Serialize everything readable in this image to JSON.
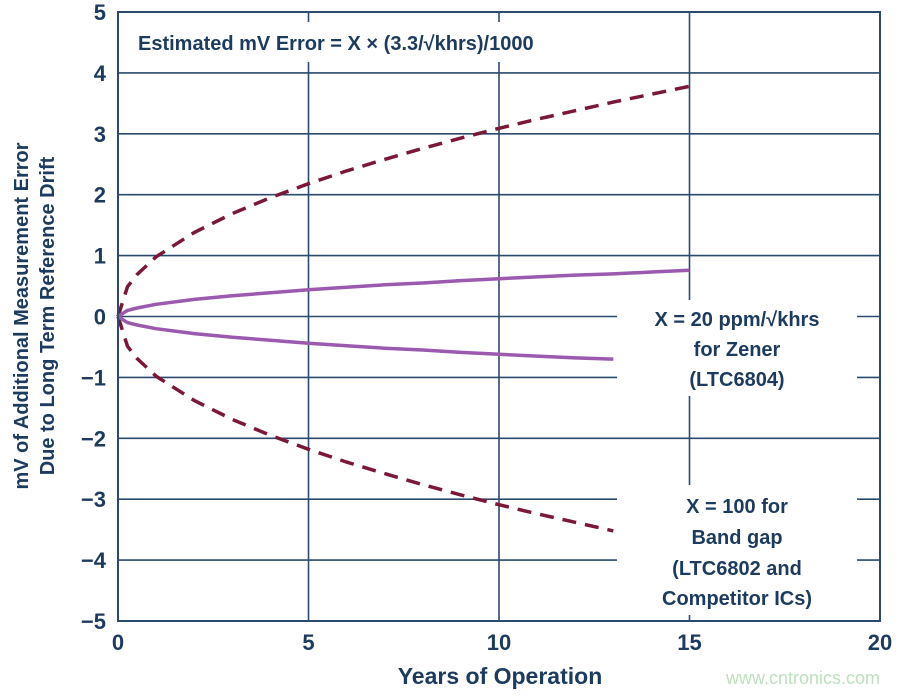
{
  "chart_data": {
    "type": "line",
    "title": "Estimated mV Error = X × (3.3/√khrs)/1000",
    "xlabel": "Years of Operation",
    "ylabel": [
      "mV of Additional Measurement Error",
      "Due to Long Term Reference Drift"
    ],
    "xlim": [
      0,
      20
    ],
    "ylim": [
      -5,
      5
    ],
    "xticks": [
      "0",
      "5",
      "10",
      "15",
      "20"
    ],
    "yticks": [
      "5",
      "4",
      "3",
      "2",
      "1",
      "0",
      "−1",
      "−2",
      "−3",
      "−4",
      "−5"
    ],
    "grid": true,
    "annotations": {
      "zener": [
        "X = 20 ppm/√khrs",
        "for Zener",
        "(LTC6804)"
      ],
      "bandgap": [
        "X = 100 for",
        "Band gap",
        "(LTC6802 and",
        "Competitor ICs)"
      ]
    },
    "series": [
      {
        "style": "dashed",
        "color": "#7a1838",
        "x": [
          0,
          0.25,
          0.5,
          1,
          2,
          3,
          4,
          5,
          6,
          7,
          8,
          9,
          10,
          11,
          12,
          13,
          14,
          15
        ],
        "y": [
          0,
          0.49,
          0.69,
          0.98,
          1.38,
          1.69,
          1.95,
          2.18,
          2.39,
          2.58,
          2.76,
          2.93,
          3.09,
          3.24,
          3.38,
          3.52,
          3.65,
          3.78
        ]
      },
      {
        "style": "dashed",
        "color": "#7a1838",
        "x": [
          0,
          0.25,
          0.5,
          1,
          2,
          3,
          4,
          5,
          6,
          7,
          8,
          9,
          10,
          11,
          12,
          13
        ],
        "y": [
          0,
          -0.49,
          -0.69,
          -0.98,
          -1.38,
          -1.69,
          -1.95,
          -2.18,
          -2.39,
          -2.58,
          -2.76,
          -2.93,
          -3.09,
          -3.24,
          -3.38,
          -3.52
        ]
      },
      {
        "style": "solid",
        "color": "#9b5aae",
        "x": [
          0,
          0.25,
          0.5,
          1,
          2,
          3,
          4,
          5,
          6,
          7,
          8,
          9,
          10,
          11,
          12,
          13,
          14,
          15
        ],
        "y": [
          0,
          0.1,
          0.14,
          0.2,
          0.28,
          0.34,
          0.39,
          0.44,
          0.48,
          0.52,
          0.55,
          0.59,
          0.62,
          0.65,
          0.68,
          0.7,
          0.73,
          0.76
        ]
      },
      {
        "style": "solid",
        "color": "#9b5aae",
        "x": [
          0,
          0.25,
          0.5,
          1,
          2,
          3,
          4,
          5,
          6,
          7,
          8,
          9,
          10,
          11,
          12,
          13
        ],
        "y": [
          0,
          -0.1,
          -0.14,
          -0.2,
          -0.28,
          -0.34,
          -0.39,
          -0.44,
          -0.48,
          -0.52,
          -0.55,
          -0.59,
          -0.62,
          -0.65,
          -0.68,
          -0.7
        ]
      }
    ]
  },
  "watermark": "www.cntronics.com",
  "colors": {
    "axis": "#2a4a6e",
    "text": "#1c3b5e",
    "watermark": "#bfe0bf"
  }
}
